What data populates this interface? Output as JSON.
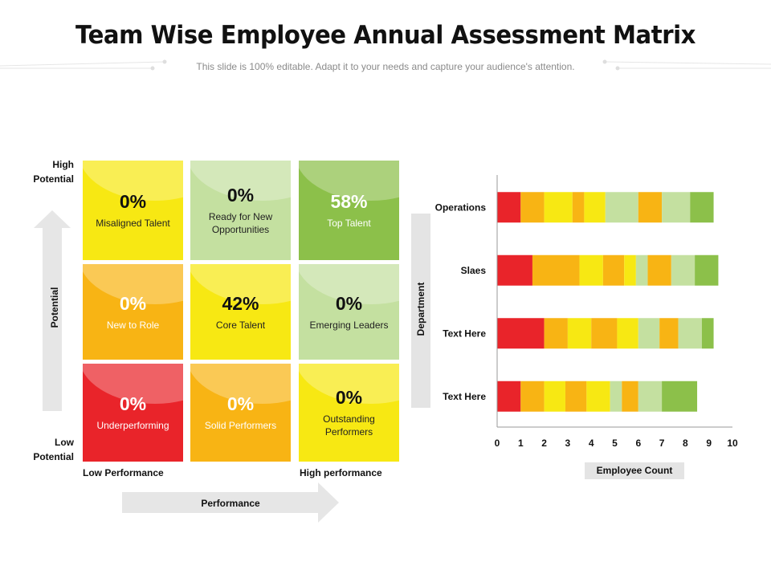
{
  "title": "Team Wise Employee Annual Assessment Matrix",
  "subtitle": "This slide is 100% editable. Adapt it to your needs and capture your audience's attention.",
  "matrix": {
    "y_high_l1": "High",
    "y_high_l2": "Potential",
    "y_low_l1": "Low",
    "y_low_l2": "Potential",
    "y_axis_label": "Potential",
    "x_low": "Low Performance",
    "x_high": "High performance",
    "x_axis_label": "Performance",
    "cells": [
      {
        "pct": "0%",
        "label": "Misaligned Talent",
        "color": "#f7e813"
      },
      {
        "pct": "0%",
        "label": "Ready for New Opportunities",
        "color": "#c4e0a0"
      },
      {
        "pct": "58%",
        "label": "Top Talent",
        "color": "#8cc04a"
      },
      {
        "pct": "0%",
        "label": "New to Role",
        "color": "#f8b414"
      },
      {
        "pct": "42%",
        "label": "Core Talent",
        "color": "#f7e813"
      },
      {
        "pct": "0%",
        "label": "Emerging Leaders",
        "color": "#c4e0a0"
      },
      {
        "pct": "0%",
        "label": "Underperforming",
        "color": "#e9242a"
      },
      {
        "pct": "0%",
        "label": "Solid Performers",
        "color": "#f8b414"
      },
      {
        "pct": "0%",
        "label": "Outstanding Performers",
        "color": "#f7e813"
      }
    ]
  },
  "chart_data": {
    "type": "bar",
    "orientation": "horizontal",
    "stacked": true,
    "categories": [
      "Operations",
      "Slaes",
      "Text Here",
      "Text Here"
    ],
    "ylabel": "Department",
    "xlabel": "Employee Count",
    "xlim": [
      0,
      10
    ],
    "xticks": [
      "0",
      "1",
      "2",
      "3",
      "4",
      "5",
      "6",
      "7",
      "8",
      "9",
      "10"
    ],
    "series": [
      {
        "color": "#e9242a",
        "values": [
          1.0,
          1.5,
          2.0,
          1.0
        ]
      },
      {
        "color": "#f8b414",
        "values": [
          1.0,
          2.0,
          1.0,
          1.0
        ]
      },
      {
        "color": "#f7e813",
        "values": [
          1.2,
          1.0,
          1.0,
          0.9
        ]
      },
      {
        "color": "#f8b414",
        "values": [
          0.5,
          0.9,
          1.1,
          0.9
        ]
      },
      {
        "color": "#f7e813",
        "values": [
          0.9,
          0.5,
          0.9,
          1.0
        ]
      },
      {
        "color": "#c4e0a0",
        "values": [
          1.4,
          0.5,
          0.9,
          0.5
        ]
      },
      {
        "color": "#f8b414",
        "values": [
          1.0,
          1.0,
          0.8,
          0.7
        ]
      },
      {
        "color": "#c4e0a0",
        "values": [
          1.2,
          1.0,
          1.0,
          1.0
        ]
      },
      {
        "color": "#8cc04a",
        "values": [
          1.0,
          1.0,
          0.5,
          1.5
        ]
      }
    ]
  }
}
